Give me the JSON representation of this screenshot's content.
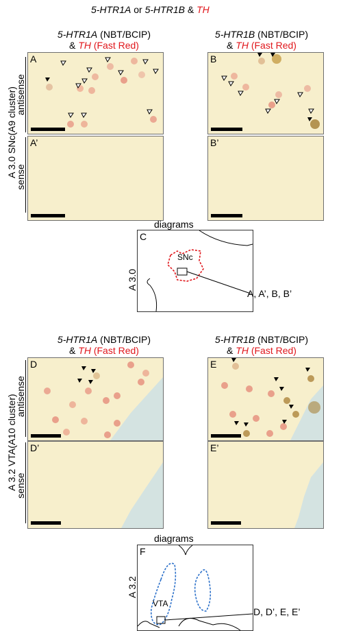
{
  "figure_title": {
    "part1": "5-HTR1A",
    "mid1": " or ",
    "part2": "5-HTR1B",
    "mid2": " & ",
    "part3": "TH"
  },
  "section_top": {
    "col1_gene": "5-HTR1A",
    "col1_method": " (NBT/BCIP)",
    "col2_gene": "5-HTR1B",
    "col2_method": " (NBT/BCIP)",
    "amp": "& ",
    "th": "TH",
    "th_method": " (Fast Red)",
    "row_label": "A 3.0  SNc(A9 cluster)",
    "antisense": "antisense",
    "sense": "sense",
    "panels": [
      "A",
      "B",
      "A’",
      "B’"
    ],
    "diagram_heading": "diagrams",
    "diagram_panel": "C",
    "diagram_level": "A 3.0",
    "region": "SNc",
    "callout": "A, A’, B, B’"
  },
  "section_bottom": {
    "col1_gene": "5-HTR1A",
    "col1_method": " (NBT/BCIP)",
    "col2_gene": "5-HTR1B",
    "col2_method": " (NBT/BCIP)",
    "amp": "& ",
    "th": "TH",
    "th_method": " (Fast Red)",
    "row_label": "A 3.2 VTA(A10 cluster)",
    "antisense": "antisense",
    "sense": "sense",
    "panels": [
      "D",
      "E",
      "D’",
      "E’"
    ],
    "diagram_heading": "diagrams",
    "diagram_panel": "F",
    "diagram_level": "A 3.2",
    "region": "VTA",
    "callout": "D, D’, E, E’"
  },
  "colors": {
    "th_red": "#e0161b",
    "tissue": "#f7efcc",
    "snc_outline": "#e0161b",
    "vta_outline": "#2a6fc9"
  }
}
